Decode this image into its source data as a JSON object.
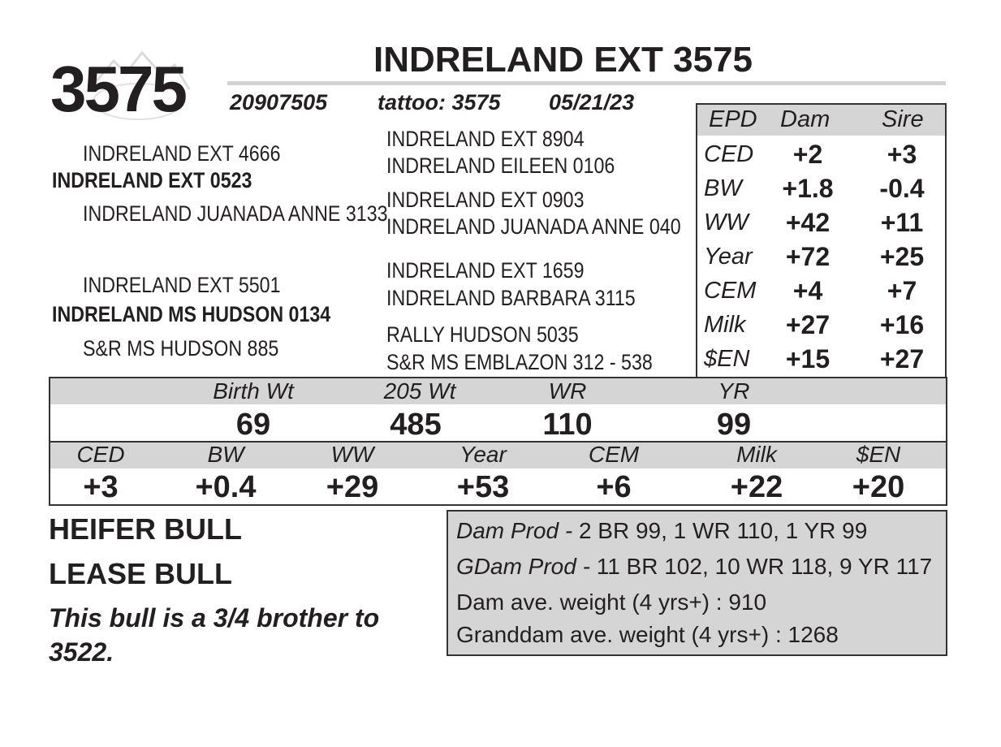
{
  "header": {
    "lot": "3575",
    "name": "INDRELAND EXT 3575",
    "registration": "20907505",
    "tattoo": "tattoo: 3575",
    "birth_date": "05/21/23"
  },
  "pedigree": {
    "sire": "INDRELAND EXT 0523",
    "sire_sire": "INDRELAND EXT 4666",
    "sire_dam": "INDRELAND JUANADA ANNE 3133",
    "dam": "INDRELAND MS HUDSON 0134",
    "dam_sire": "INDRELAND EXT 5501",
    "dam_dam": "S&R MS HUDSON 885",
    "ss_sire": "INDRELAND EXT 8904",
    "ss_dam": "INDRELAND EILEEN 0106",
    "sd_sire": "INDRELAND EXT 0903",
    "sd_dam": "INDRELAND JUANADA ANNE 040",
    "ds_sire": "INDRELAND EXT 1659",
    "ds_dam": "INDRELAND BARBARA 3115",
    "dd_sire": "RALLY HUDSON 5035",
    "dd_dam": "S&R MS EMBLAZON 312 - 538"
  },
  "parent_epd": {
    "headers": [
      "EPD",
      "Dam",
      "Sire"
    ],
    "rows": [
      {
        "label": "CED",
        "dam": "+2",
        "sire": "+3"
      },
      {
        "label": "BW",
        "dam": "+1.8",
        "sire": "-0.4"
      },
      {
        "label": "WW",
        "dam": "+42",
        "sire": "+11"
      },
      {
        "label": "Year",
        "dam": "+72",
        "sire": "+25"
      },
      {
        "label": "CEM",
        "dam": "+4",
        "sire": "+7"
      },
      {
        "label": "Milk",
        "dam": "+27",
        "sire": "+16"
      },
      {
        "label": "$EN",
        "dam": "+15",
        "sire": "+27"
      }
    ]
  },
  "performance": {
    "labels": [
      "Birth Wt",
      "205 Wt",
      "WR",
      "YR"
    ],
    "values": [
      "69",
      "485",
      "110",
      "99"
    ]
  },
  "epd": {
    "labels": [
      "CED",
      "BW",
      "WW",
      "Year",
      "CEM",
      "Milk",
      "$EN"
    ],
    "values": [
      "+3",
      "+0.4",
      "+29",
      "+53",
      "+6",
      "+22",
      "+20"
    ]
  },
  "notes": {
    "line1": "HEIFER BULL",
    "line2": "LEASE BULL",
    "comment": "This bull is a 3/4 brother to 3522."
  },
  "production": {
    "dam_prod_label": "Dam Prod - ",
    "dam_prod_value": "2 BR 99, 1 WR 110, 1 YR 99",
    "gdam_prod_label": "GDam Prod - ",
    "gdam_prod_value": "11 BR 102, 10 WR 118, 9 YR 117",
    "dam_weight": "Dam ave. weight (4 yrs+) : 910",
    "granddam_weight": "Granddam ave. weight (4 yrs+) : 1268"
  }
}
